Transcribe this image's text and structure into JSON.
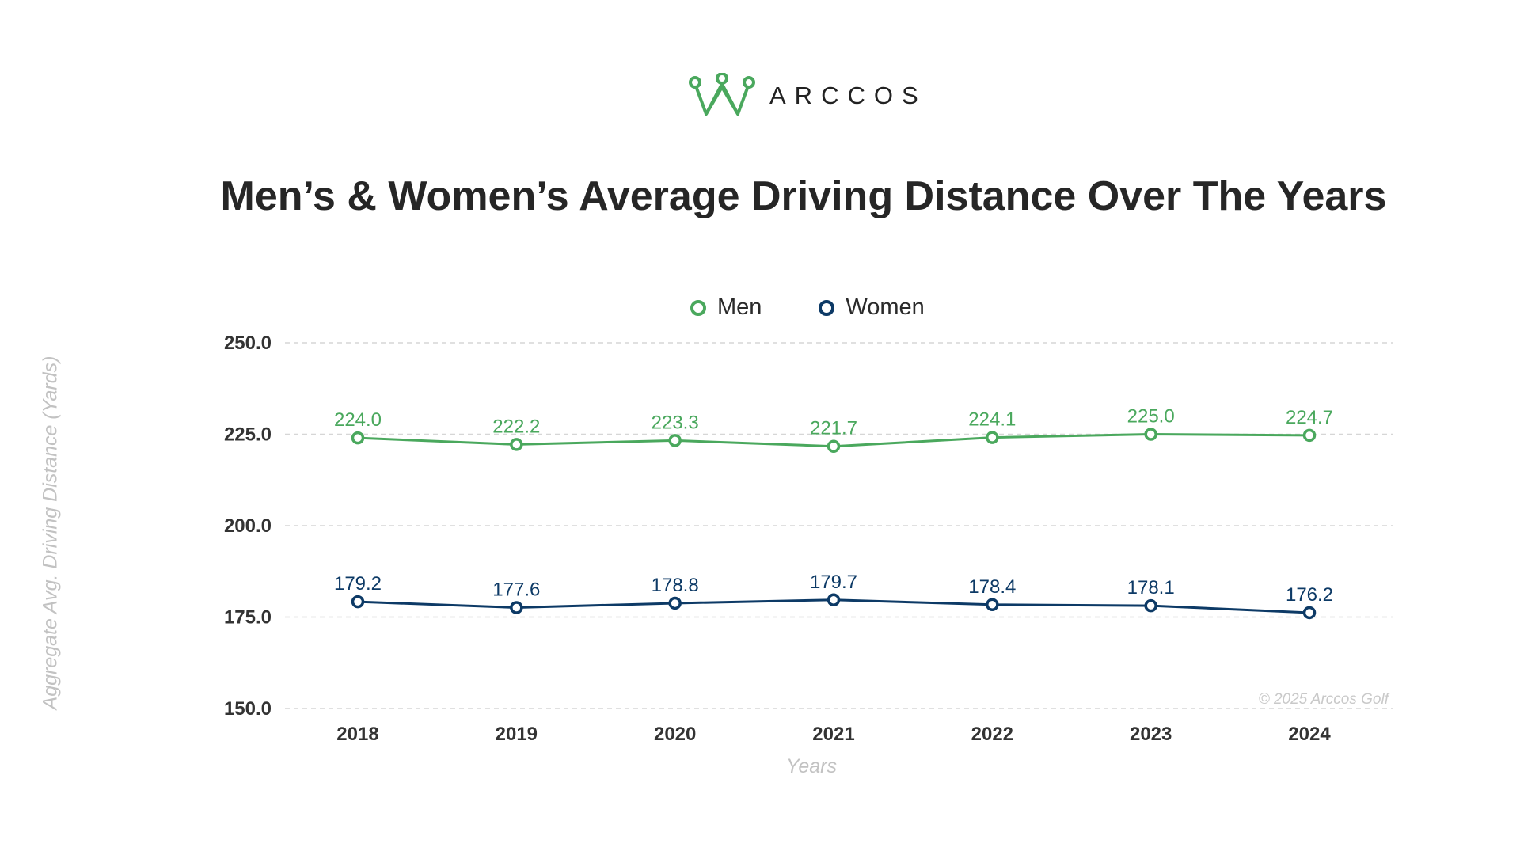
{
  "logo": {
    "text": "ARCCOS",
    "color": "#4aa85d"
  },
  "copyright": "© 2025 Arccos Golf",
  "chart_data": {
    "type": "line",
    "title": "Men’s & Women’s Average Driving Distance Over The Years",
    "xlabel": "Years",
    "ylabel": "Aggregate Avg. Driving Distance (Yards)",
    "x": [
      "2018",
      "2019",
      "2020",
      "2021",
      "2022",
      "2023",
      "2024"
    ],
    "ylim": [
      150.0,
      250.0
    ],
    "yticks": [
      "150.0",
      "175.0",
      "200.0",
      "225.0",
      "250.0"
    ],
    "grid": true,
    "legend_position": "top-center",
    "series": [
      {
        "name": "Men",
        "color": "#4aa85d",
        "values": [
          224.0,
          222.2,
          223.3,
          221.7,
          224.1,
          225.0,
          224.7
        ],
        "labels": [
          "224.0",
          "222.2",
          "223.3",
          "221.7",
          "224.1",
          "225.0",
          "224.7"
        ]
      },
      {
        "name": "Women",
        "color": "#0d3a66",
        "values": [
          179.2,
          177.6,
          178.8,
          179.7,
          178.4,
          178.1,
          176.2
        ],
        "labels": [
          "179.2",
          "177.6",
          "178.8",
          "179.7",
          "178.4",
          "178.1",
          "176.2"
        ]
      }
    ]
  }
}
